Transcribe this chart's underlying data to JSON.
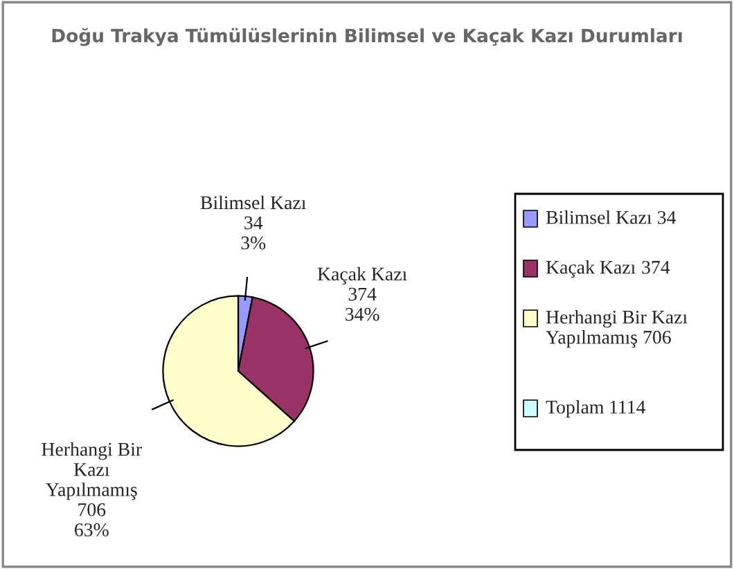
{
  "chart_data": {
    "type": "pie",
    "title": "Doğu Trakya Tümülüslerinin Bilimsel ve Kaçak Kazı Durumları",
    "categories": [
      "Bilimsel Kazı",
      "Kaçak Kazı",
      "Herhangi Bir Kazı Yapılmamış",
      "Toplam"
    ],
    "values": [
      34,
      374,
      706,
      null
    ],
    "value_labels": [
      "34",
      "374",
      "706",
      "1114"
    ],
    "colors": [
      "#9999ff",
      "#993366",
      "#ffffcc",
      "#ccffff"
    ],
    "annotations": [
      {
        "text": "3%",
        "x": "Bilimsel Kazı"
      },
      {
        "text": "34%",
        "x": "Kaçak Kazı"
      },
      {
        "text": "63%",
        "x": "Herhangi Bir Kazı Yapılmamış"
      }
    ],
    "legend": "right"
  }
}
